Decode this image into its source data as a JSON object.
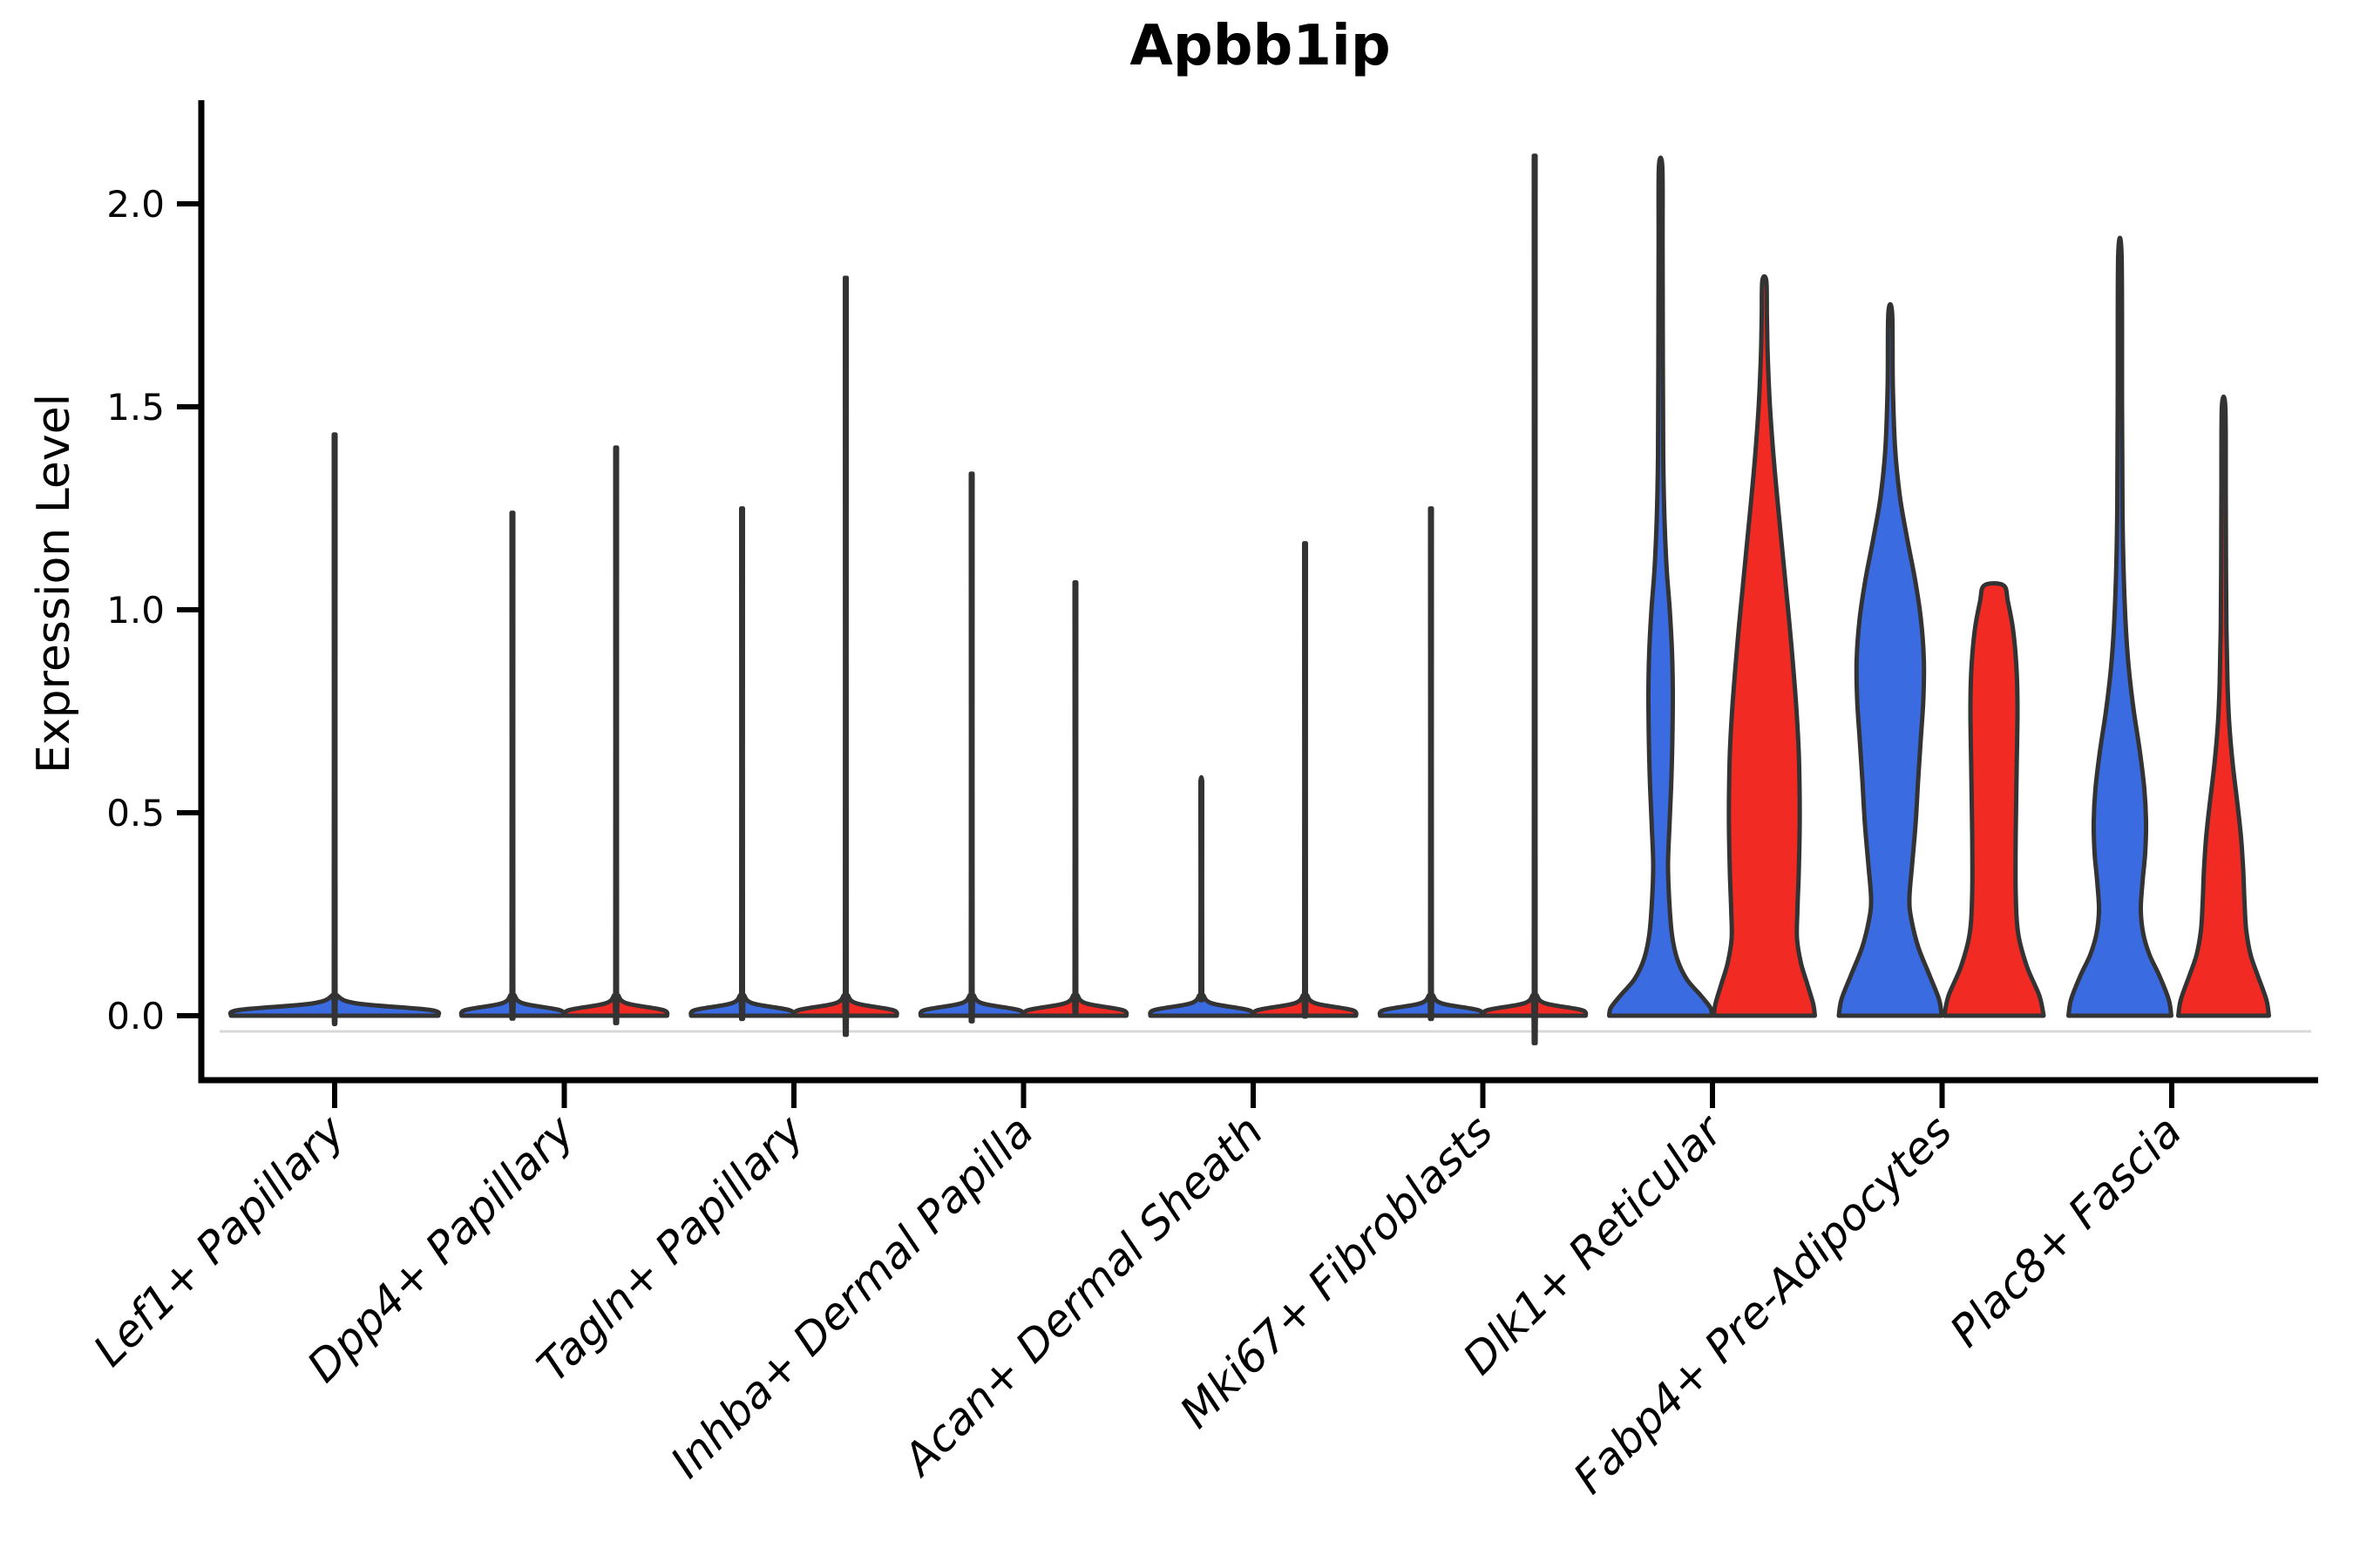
{
  "title": "Apbb1ip",
  "y_axis": {
    "label": "Expression Level",
    "tick_labels": [
      "2.0",
      "1.5",
      "1.0",
      "0.5",
      "0.0"
    ]
  },
  "chart_data": {
    "type": "violin",
    "title": "Apbb1ip",
    "xlabel": "",
    "ylabel": "Expression Level",
    "ylim": [
      0,
      2.25
    ],
    "yticks": [
      2.0,
      1.5,
      1.0,
      0.5,
      0.0
    ],
    "grid": false,
    "legend_position": "none",
    "categories": [
      "Lef1+ Papillary",
      "Dpp4+ Papillary",
      "Tagln+ Papillary",
      "Inhba+ Dermal Papilla",
      "Acan+ Dermal Sheath",
      "Mki67+ Fibroblasts",
      "Dlk1+ Reticular",
      "Fabp4+ Pre-Adipocytes",
      "Plac8+ Fascia"
    ],
    "groups": [
      {
        "id": "blue",
        "color": "#3B6BE0"
      },
      {
        "id": "red",
        "color": "#F12B24"
      }
    ],
    "outline_color": "#333333",
    "axis_color": "#000000",
    "baseline_shadow_color": "#d8d8d8",
    "max_expression_by_category": {
      "blue": [
        1.38,
        1.2,
        1.21,
        1.29,
        0.58,
        1.21,
        2.09,
        1.73,
        1.87
      ],
      "red": [
        null,
        1.35,
        1.74,
        1.04,
        1.13,
        2.02,
        1.81,
        1.06,
        1.5
      ]
    },
    "violins": [
      {
        "cat": 0,
        "slot": 0,
        "group": "blue",
        "max": 1.38,
        "profile": [
          [
            0,
            119
          ],
          [
            0.014,
            110
          ],
          [
            0.03,
            26
          ],
          [
            0.05,
            3
          ],
          [
            0.08,
            1
          ],
          [
            1.32,
            1
          ],
          [
            1.38,
            0.8
          ]
        ]
      },
      {
        "cat": 1,
        "slot": -1,
        "group": "blue",
        "max": 1.2,
        "profile": [
          [
            0,
            58.5
          ],
          [
            0.014,
            54
          ],
          [
            0.03,
            13
          ],
          [
            0.05,
            2.5
          ],
          [
            0.08,
            1
          ],
          [
            1.14,
            1
          ],
          [
            1.2,
            0.8
          ]
        ]
      },
      {
        "cat": 1,
        "slot": 1,
        "group": "red",
        "max": 1.35,
        "profile": [
          [
            0,
            58.5
          ],
          [
            0.014,
            54
          ],
          [
            0.03,
            13
          ],
          [
            0.05,
            2.5
          ],
          [
            0.08,
            1
          ],
          [
            1.29,
            1
          ],
          [
            1.35,
            0.8
          ]
        ]
      },
      {
        "cat": 2,
        "slot": -1,
        "group": "blue",
        "max": 1.21,
        "profile": [
          [
            0,
            58.5
          ],
          [
            0.014,
            54
          ],
          [
            0.03,
            13
          ],
          [
            0.05,
            2.5
          ],
          [
            0.08,
            1
          ],
          [
            1.15,
            1
          ],
          [
            1.21,
            0.8
          ]
        ]
      },
      {
        "cat": 2,
        "slot": 1,
        "group": "red",
        "max": 1.74,
        "profile": [
          [
            0,
            58.5
          ],
          [
            0.014,
            54
          ],
          [
            0.03,
            13
          ],
          [
            0.05,
            2.5
          ],
          [
            0.08,
            1
          ],
          [
            1.68,
            1
          ],
          [
            1.74,
            0.8
          ]
        ]
      },
      {
        "cat": 3,
        "slot": -1,
        "group": "blue",
        "max": 1.29,
        "profile": [
          [
            0,
            58.5
          ],
          [
            0.014,
            54
          ],
          [
            0.03,
            13
          ],
          [
            0.05,
            2.5
          ],
          [
            0.08,
            1
          ],
          [
            1.23,
            1
          ],
          [
            1.29,
            0.8
          ]
        ]
      },
      {
        "cat": 3,
        "slot": 1,
        "group": "red",
        "max": 1.04,
        "profile": [
          [
            0,
            58.5
          ],
          [
            0.014,
            54
          ],
          [
            0.03,
            13
          ],
          [
            0.05,
            2.5
          ],
          [
            0.08,
            1
          ],
          [
            0.98,
            1
          ],
          [
            1.04,
            0.8
          ]
        ]
      },
      {
        "cat": 4,
        "slot": -1,
        "group": "blue",
        "max": 0.58,
        "profile": [
          [
            0,
            58.5
          ],
          [
            0.014,
            54
          ],
          [
            0.03,
            13
          ],
          [
            0.05,
            2.5
          ],
          [
            0.08,
            1
          ],
          [
            0.52,
            1
          ],
          [
            0.58,
            0.8
          ]
        ]
      },
      {
        "cat": 4,
        "slot": 1,
        "group": "red",
        "max": 1.13,
        "profile": [
          [
            0,
            58.5
          ],
          [
            0.014,
            54
          ],
          [
            0.03,
            13
          ],
          [
            0.05,
            2.5
          ],
          [
            0.08,
            1
          ],
          [
            1.07,
            1
          ],
          [
            1.13,
            0.8
          ]
        ]
      },
      {
        "cat": 5,
        "slot": -1,
        "group": "blue",
        "max": 1.21,
        "profile": [
          [
            0,
            58.5
          ],
          [
            0.014,
            54
          ],
          [
            0.03,
            13
          ],
          [
            0.05,
            2.5
          ],
          [
            0.08,
            1
          ],
          [
            1.15,
            1
          ],
          [
            1.21,
            0.8
          ]
        ]
      },
      {
        "cat": 5,
        "slot": 1,
        "group": "red",
        "max": 2.02,
        "profile": [
          [
            0,
            58.5
          ],
          [
            0.014,
            54
          ],
          [
            0.03,
            13
          ],
          [
            0.05,
            2.5
          ],
          [
            0.08,
            1
          ],
          [
            1.96,
            1
          ],
          [
            2.02,
            0.8
          ]
        ]
      },
      {
        "cat": 6,
        "slot": -1,
        "group": "blue",
        "max": 2.09,
        "profile": [
          [
            0,
            59
          ],
          [
            0.02,
            57
          ],
          [
            0.05,
            46
          ],
          [
            0.09,
            30
          ],
          [
            0.14,
            19
          ],
          [
            0.2,
            13
          ],
          [
            0.28,
            10
          ],
          [
            0.37,
            8.5
          ],
          [
            0.46,
            10
          ],
          [
            0.56,
            12
          ],
          [
            0.68,
            13.5
          ],
          [
            0.8,
            14
          ],
          [
            0.9,
            13
          ],
          [
            1.0,
            10.5
          ],
          [
            1.1,
            7
          ],
          [
            1.22,
            4.5
          ],
          [
            1.38,
            3
          ],
          [
            1.6,
            2.6
          ],
          [
            1.9,
            2.3
          ],
          [
            2.09,
            2
          ]
        ]
      },
      {
        "cat": 6,
        "slot": 1,
        "group": "red",
        "max": 1.81,
        "profile": [
          [
            0,
            58
          ],
          [
            0.03,
            56
          ],
          [
            0.08,
            49
          ],
          [
            0.13,
            42
          ],
          [
            0.19,
            37.5
          ],
          [
            0.26,
            38
          ],
          [
            0.35,
            39.5
          ],
          [
            0.45,
            40.5
          ],
          [
            0.55,
            40.5
          ],
          [
            0.65,
            39.5
          ],
          [
            0.75,
            37
          ],
          [
            0.85,
            33.5
          ],
          [
            0.95,
            29.5
          ],
          [
            1.05,
            25
          ],
          [
            1.15,
            20.5
          ],
          [
            1.26,
            15.5
          ],
          [
            1.38,
            10.5
          ],
          [
            1.5,
            6.5
          ],
          [
            1.62,
            4
          ],
          [
            1.72,
            3
          ],
          [
            1.81,
            2.3
          ]
        ]
      },
      {
        "cat": 7,
        "slot": -1,
        "group": "blue",
        "max": 1.73,
        "profile": [
          [
            0,
            59
          ],
          [
            0.04,
            56
          ],
          [
            0.1,
            45
          ],
          [
            0.17,
            32
          ],
          [
            0.24,
            24
          ],
          [
            0.29,
            22
          ],
          [
            0.37,
            25
          ],
          [
            0.47,
            29
          ],
          [
            0.58,
            32
          ],
          [
            0.68,
            35
          ],
          [
            0.78,
            38
          ],
          [
            0.88,
            38.5
          ],
          [
            0.98,
            35
          ],
          [
            1.08,
            28
          ],
          [
            1.18,
            19
          ],
          [
            1.28,
            11
          ],
          [
            1.4,
            5.5
          ],
          [
            1.55,
            3
          ],
          [
            1.73,
            2.2
          ]
        ]
      },
      {
        "cat": 7,
        "slot": 1,
        "group": "red",
        "max": 1.06,
        "profile": [
          [
            0,
            57
          ],
          [
            0.05,
            52
          ],
          [
            0.12,
            38
          ],
          [
            0.2,
            28
          ],
          [
            0.3,
            25
          ],
          [
            0.45,
            25
          ],
          [
            0.6,
            26
          ],
          [
            0.75,
            27
          ],
          [
            0.85,
            26
          ],
          [
            0.95,
            22
          ],
          [
            1.02,
            16
          ],
          [
            1.06,
            11
          ]
        ]
      },
      {
        "cat": 8,
        "slot": -1,
        "group": "blue",
        "max": 1.87,
        "profile": [
          [
            0,
            59
          ],
          [
            0.04,
            56
          ],
          [
            0.1,
            45
          ],
          [
            0.15,
            34
          ],
          [
            0.2,
            27
          ],
          [
            0.26,
            24
          ],
          [
            0.33,
            26
          ],
          [
            0.4,
            29
          ],
          [
            0.48,
            30
          ],
          [
            0.56,
            28
          ],
          [
            0.65,
            23
          ],
          [
            0.75,
            16
          ],
          [
            0.85,
            10.5
          ],
          [
            0.95,
            7
          ],
          [
            1.08,
            4.5
          ],
          [
            1.25,
            3
          ],
          [
            1.5,
            2.5
          ],
          [
            1.87,
            2
          ]
        ]
      },
      {
        "cat": 8,
        "slot": 1,
        "group": "red",
        "max": 1.5,
        "profile": [
          [
            0,
            52
          ],
          [
            0.04,
            49
          ],
          [
            0.1,
            39
          ],
          [
            0.15,
            31
          ],
          [
            0.21,
            26
          ],
          [
            0.28,
            24
          ],
          [
            0.36,
            22.5
          ],
          [
            0.44,
            20
          ],
          [
            0.52,
            16
          ],
          [
            0.62,
            10.5
          ],
          [
            0.72,
            6.5
          ],
          [
            0.82,
            4.5
          ],
          [
            0.95,
            3.3
          ],
          [
            1.1,
            2.8
          ],
          [
            1.3,
            2.5
          ],
          [
            1.5,
            2
          ]
        ]
      }
    ]
  }
}
